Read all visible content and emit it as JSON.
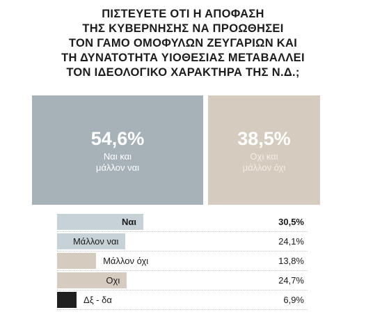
{
  "title_lines": [
    "ΠΙΣΤΕΥΕΤΕ ΟΤΙ Η ΑΠΟΦΑΣΗ",
    "ΤΗΣ ΚΥΒΕΡΝΗΣΗΣ ΝΑ ΠΡΟΩΘΗΣΕΙ",
    "ΤΟΝ ΓΑΜΟ ΟΜΟΦΥΛΩΝ ΖΕΥΓΑΡΙΩΝ ΚΑΙ",
    "ΤΗ ΔΥΝΑΤΟΤΗΤΑ ΥΙΟΘΕΣΙΑΣ ΜΕΤΑΒΑΛΛΕΙ",
    "ΤΟΝ ΙΔΕΟΛΟΓΙΚΟ ΧΑΡΑΚΤΗΡΑ ΤΗΣ Ν.Δ.;"
  ],
  "summary": {
    "yes": {
      "value": "54,6%",
      "label_line1": "Ναι και",
      "label_line2": "μάλλον ναι",
      "color": "#a7b2b8"
    },
    "no": {
      "value": "38,5%",
      "label_line1": "Οχι και",
      "label_line2": "μάλλον όχι",
      "color": "#d6cbbf"
    }
  },
  "chart_data": {
    "type": "bar",
    "categories": [
      "Ναι",
      "Μάλλον ναι",
      "Μάλλον όχι",
      "Οχι",
      "Δξ - δα"
    ],
    "values": [
      30.5,
      24.1,
      13.8,
      24.7,
      6.9
    ],
    "value_labels": [
      "30,5%",
      "24,1%",
      "13,8%",
      "24,7%",
      "6,9%"
    ],
    "colors": [
      "#c7d1d8",
      "#c7d1d8",
      "#d6cbbf",
      "#d6cbbf",
      "#1f1f1f"
    ],
    "bold": [
      true,
      false,
      false,
      false,
      false
    ]
  }
}
